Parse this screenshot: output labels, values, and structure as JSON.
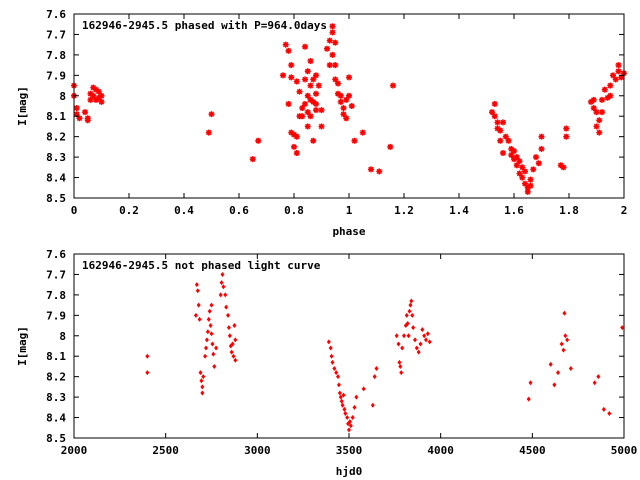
{
  "chart_data": [
    {
      "type": "scatter",
      "title": "162946-2945.5 phased with P=964.0days",
      "xlabel": "phase",
      "ylabel": "I[mag]",
      "xlim": [
        0,
        2
      ],
      "ylim": [
        8.5,
        7.6
      ],
      "y_inverted": true,
      "grid": false,
      "marker": "star",
      "color": "#ff0000",
      "x_ticks": [
        0,
        0.2,
        0.4,
        0.6,
        0.8,
        1,
        1.2,
        1.4,
        1.6,
        1.8,
        2
      ],
      "x_tick_labels": [
        "0",
        "0.2",
        "0.4",
        "0.6",
        "0.8",
        "1",
        "1.2",
        "1.4",
        "1.6",
        "1.8",
        "2"
      ],
      "y_ticks": [
        7.6,
        7.7,
        7.8,
        7.9,
        8,
        8.1,
        8.2,
        8.3,
        8.4,
        8.5
      ],
      "y_tick_labels": [
        "7.6",
        "7.7",
        "7.8",
        "7.9",
        "8",
        "8.1",
        "8.2",
        "8.3",
        "8.4",
        "8.5"
      ],
      "points": [
        [
          0.0,
          7.95
        ],
        [
          0.0,
          8.0
        ],
        [
          0.01,
          8.06
        ],
        [
          0.01,
          8.09
        ],
        [
          0.02,
          8.11
        ],
        [
          0.04,
          8.08
        ],
        [
          0.05,
          8.11
        ],
        [
          0.05,
          8.12
        ],
        [
          0.06,
          7.99
        ],
        [
          0.06,
          8.02
        ],
        [
          0.07,
          7.96
        ],
        [
          0.07,
          8.0
        ],
        [
          0.08,
          7.97
        ],
        [
          0.08,
          8.02
        ],
        [
          0.09,
          7.98
        ],
        [
          0.09,
          8.01
        ],
        [
          0.1,
          8.0
        ],
        [
          0.1,
          8.03
        ],
        [
          0.49,
          8.18
        ],
        [
          0.5,
          8.09
        ],
        [
          0.65,
          8.31
        ],
        [
          0.67,
          8.22
        ],
        [
          0.76,
          7.9
        ],
        [
          0.77,
          7.75
        ],
        [
          0.78,
          7.78
        ],
        [
          0.78,
          8.04
        ],
        [
          0.79,
          7.85
        ],
        [
          0.79,
          7.91
        ],
        [
          0.79,
          8.18
        ],
        [
          0.8,
          8.19
        ],
        [
          0.8,
          8.25
        ],
        [
          0.81,
          8.2
        ],
        [
          0.81,
          8.28
        ],
        [
          0.81,
          7.93
        ],
        [
          0.82,
          7.98
        ],
        [
          0.82,
          8.1
        ],
        [
          0.83,
          8.06
        ],
        [
          0.83,
          8.1
        ],
        [
          0.84,
          7.92
        ],
        [
          0.84,
          8.04
        ],
        [
          0.84,
          7.76
        ],
        [
          0.85,
          7.88
        ],
        [
          0.85,
          8.0
        ],
        [
          0.85,
          8.08
        ],
        [
          0.85,
          8.15
        ],
        [
          0.86,
          7.83
        ],
        [
          0.86,
          7.95
        ],
        [
          0.86,
          8.02
        ],
        [
          0.86,
          8.1
        ],
        [
          0.87,
          7.92
        ],
        [
          0.87,
          8.03
        ],
        [
          0.87,
          8.22
        ],
        [
          0.88,
          7.99
        ],
        [
          0.88,
          8.04
        ],
        [
          0.88,
          8.07
        ],
        [
          0.88,
          7.9
        ],
        [
          0.89,
          7.95
        ],
        [
          0.9,
          8.07
        ],
        [
          0.9,
          8.15
        ],
        [
          0.92,
          7.77
        ],
        [
          0.93,
          7.73
        ],
        [
          0.93,
          7.85
        ],
        [
          0.94,
          7.69
        ],
        [
          0.94,
          7.8
        ],
        [
          0.94,
          7.66
        ],
        [
          0.95,
          7.74
        ],
        [
          0.95,
          7.85
        ],
        [
          0.95,
          7.92
        ],
        [
          0.96,
          7.94
        ],
        [
          0.96,
          7.99
        ],
        [
          0.97,
          8.0
        ],
        [
          0.97,
          8.03
        ],
        [
          0.98,
          8.06
        ],
        [
          0.98,
          8.09
        ],
        [
          0.99,
          8.02
        ],
        [
          0.99,
          8.11
        ],
        [
          1.0,
          7.91
        ],
        [
          1.0,
          8.0
        ],
        [
          1.01,
          8.05
        ],
        [
          1.02,
          8.22
        ],
        [
          1.05,
          8.18
        ],
        [
          1.08,
          8.36
        ],
        [
          1.11,
          8.37
        ],
        [
          1.15,
          8.25
        ],
        [
          1.16,
          7.95
        ],
        [
          1.52,
          8.08
        ],
        [
          1.53,
          8.04
        ],
        [
          1.53,
          8.1
        ],
        [
          1.54,
          8.13
        ],
        [
          1.54,
          8.16
        ],
        [
          1.55,
          8.17
        ],
        [
          1.55,
          8.22
        ],
        [
          1.56,
          8.28
        ],
        [
          1.56,
          8.13
        ],
        [
          1.57,
          8.2
        ],
        [
          1.58,
          8.22
        ],
        [
          1.59,
          8.26
        ],
        [
          1.59,
          8.29
        ],
        [
          1.6,
          8.27
        ],
        [
          1.6,
          8.31
        ],
        [
          1.61,
          8.3
        ],
        [
          1.61,
          8.34
        ],
        [
          1.62,
          8.38
        ],
        [
          1.62,
          8.32
        ],
        [
          1.63,
          8.35
        ],
        [
          1.63,
          8.4
        ],
        [
          1.64,
          8.37
        ],
        [
          1.64,
          8.43
        ],
        [
          1.65,
          8.45
        ],
        [
          1.65,
          8.47
        ],
        [
          1.66,
          8.41
        ],
        [
          1.66,
          8.44
        ],
        [
          1.67,
          8.36
        ],
        [
          1.68,
          8.3
        ],
        [
          1.69,
          8.33
        ],
        [
          1.7,
          8.26
        ],
        [
          1.7,
          8.2
        ],
        [
          1.77,
          8.34
        ],
        [
          1.78,
          8.35
        ],
        [
          1.79,
          8.16
        ],
        [
          1.79,
          8.2
        ],
        [
          1.88,
          8.03
        ],
        [
          1.89,
          8.02
        ],
        [
          1.89,
          8.06
        ],
        [
          1.9,
          8.08
        ],
        [
          1.9,
          8.15
        ],
        [
          1.91,
          8.12
        ],
        [
          1.91,
          8.18
        ],
        [
          1.92,
          8.02
        ],
        [
          1.92,
          8.08
        ],
        [
          1.93,
          7.97
        ],
        [
          1.94,
          8.01
        ],
        [
          1.95,
          7.95
        ],
        [
          1.95,
          8.0
        ],
        [
          1.96,
          7.9
        ],
        [
          1.97,
          7.92
        ],
        [
          1.98,
          7.85
        ],
        [
          1.98,
          7.88
        ],
        [
          1.99,
          7.91
        ],
        [
          2.0,
          7.89
        ]
      ]
    },
    {
      "type": "scatter",
      "title": "162946-2945.5 not phased light curve",
      "xlabel": "hjd0",
      "ylabel": "I[mag]",
      "xlim": [
        2000,
        5000
      ],
      "ylim": [
        8.5,
        7.6
      ],
      "y_inverted": true,
      "grid": false,
      "marker": "diamond",
      "color": "#ff0000",
      "x_ticks": [
        2000,
        2500,
        3000,
        3500,
        4000,
        4500,
        5000
      ],
      "x_tick_labels": [
        "2000",
        "2500",
        "3000",
        "3500",
        "4000",
        "4500",
        "5000"
      ],
      "y_ticks": [
        7.6,
        7.7,
        7.8,
        7.9,
        8,
        8.1,
        8.2,
        8.3,
        8.4,
        8.5
      ],
      "y_tick_labels": [
        "7.6",
        "7.7",
        "7.8",
        "7.9",
        "8",
        "8.1",
        "8.2",
        "8.3",
        "8.4",
        "8.5"
      ],
      "points": [
        [
          2400,
          8.1
        ],
        [
          2400,
          8.18
        ],
        [
          2665,
          7.9
        ],
        [
          2670,
          7.75
        ],
        [
          2675,
          7.78
        ],
        [
          2680,
          7.85
        ],
        [
          2685,
          7.92
        ],
        [
          2690,
          8.18
        ],
        [
          2695,
          8.22
        ],
        [
          2700,
          8.28
        ],
        [
          2700,
          8.25
        ],
        [
          2705,
          8.2
        ],
        [
          2715,
          8.1
        ],
        [
          2720,
          8.06
        ],
        [
          2725,
          8.02
        ],
        [
          2730,
          7.98
        ],
        [
          2735,
          7.92
        ],
        [
          2740,
          7.88
        ],
        [
          2745,
          7.95
        ],
        [
          2750,
          7.99
        ],
        [
          2750,
          7.85
        ],
        [
          2755,
          8.04
        ],
        [
          2760,
          8.09
        ],
        [
          2765,
          8.15
        ],
        [
          2775,
          8.06
        ],
        [
          2800,
          7.8
        ],
        [
          2805,
          7.74
        ],
        [
          2810,
          7.7
        ],
        [
          2815,
          7.76
        ],
        [
          2825,
          7.8
        ],
        [
          2830,
          7.86
        ],
        [
          2840,
          7.9
        ],
        [
          2845,
          7.96
        ],
        [
          2850,
          8.0
        ],
        [
          2855,
          8.05
        ],
        [
          2860,
          8.08
        ],
        [
          2865,
          8.04
        ],
        [
          2870,
          8.1
        ],
        [
          2875,
          7.95
        ],
        [
          2880,
          8.02
        ],
        [
          2880,
          8.12
        ],
        [
          3390,
          8.03
        ],
        [
          3400,
          8.06
        ],
        [
          3405,
          8.1
        ],
        [
          3410,
          8.13
        ],
        [
          3420,
          8.16
        ],
        [
          3430,
          8.18
        ],
        [
          3440,
          8.2
        ],
        [
          3445,
          8.24
        ],
        [
          3450,
          8.28
        ],
        [
          3455,
          8.3
        ],
        [
          3460,
          8.32
        ],
        [
          3465,
          8.34
        ],
        [
          3470,
          8.29
        ],
        [
          3475,
          8.36
        ],
        [
          3480,
          8.38
        ],
        [
          3490,
          8.4
        ],
        [
          3495,
          8.43
        ],
        [
          3500,
          8.46
        ],
        [
          3505,
          8.42
        ],
        [
          3510,
          8.44
        ],
        [
          3520,
          8.4
        ],
        [
          3530,
          8.35
        ],
        [
          3540,
          8.3
        ],
        [
          3580,
          8.26
        ],
        [
          3630,
          8.34
        ],
        [
          3640,
          8.2
        ],
        [
          3650,
          8.16
        ],
        [
          3760,
          8.0
        ],
        [
          3770,
          8.04
        ],
        [
          3775,
          8.13
        ],
        [
          3780,
          8.15
        ],
        [
          3785,
          8.18
        ],
        [
          3790,
          8.06
        ],
        [
          3800,
          8.0
        ],
        [
          3810,
          7.95
        ],
        [
          3815,
          7.9
        ],
        [
          3820,
          7.94
        ],
        [
          3825,
          8.0
        ],
        [
          3830,
          7.88
        ],
        [
          3835,
          7.85
        ],
        [
          3840,
          7.83
        ],
        [
          3845,
          7.9
        ],
        [
          3850,
          7.96
        ],
        [
          3860,
          8.02
        ],
        [
          3870,
          8.06
        ],
        [
          3880,
          8.08
        ],
        [
          3890,
          8.04
        ],
        [
          3900,
          7.97
        ],
        [
          3910,
          8.0
        ],
        [
          3920,
          8.02
        ],
        [
          3930,
          7.99
        ],
        [
          3940,
          8.03
        ],
        [
          4480,
          8.31
        ],
        [
          4490,
          8.23
        ],
        [
          4600,
          8.14
        ],
        [
          4620,
          8.24
        ],
        [
          4640,
          8.18
        ],
        [
          4660,
          8.04
        ],
        [
          4670,
          8.07
        ],
        [
          4675,
          7.89
        ],
        [
          4680,
          8.0
        ],
        [
          4690,
          8.02
        ],
        [
          4710,
          8.16
        ],
        [
          4840,
          8.23
        ],
        [
          4860,
          8.2
        ],
        [
          4890,
          8.36
        ],
        [
          4920,
          8.38
        ],
        [
          4990,
          7.96
        ]
      ]
    }
  ]
}
